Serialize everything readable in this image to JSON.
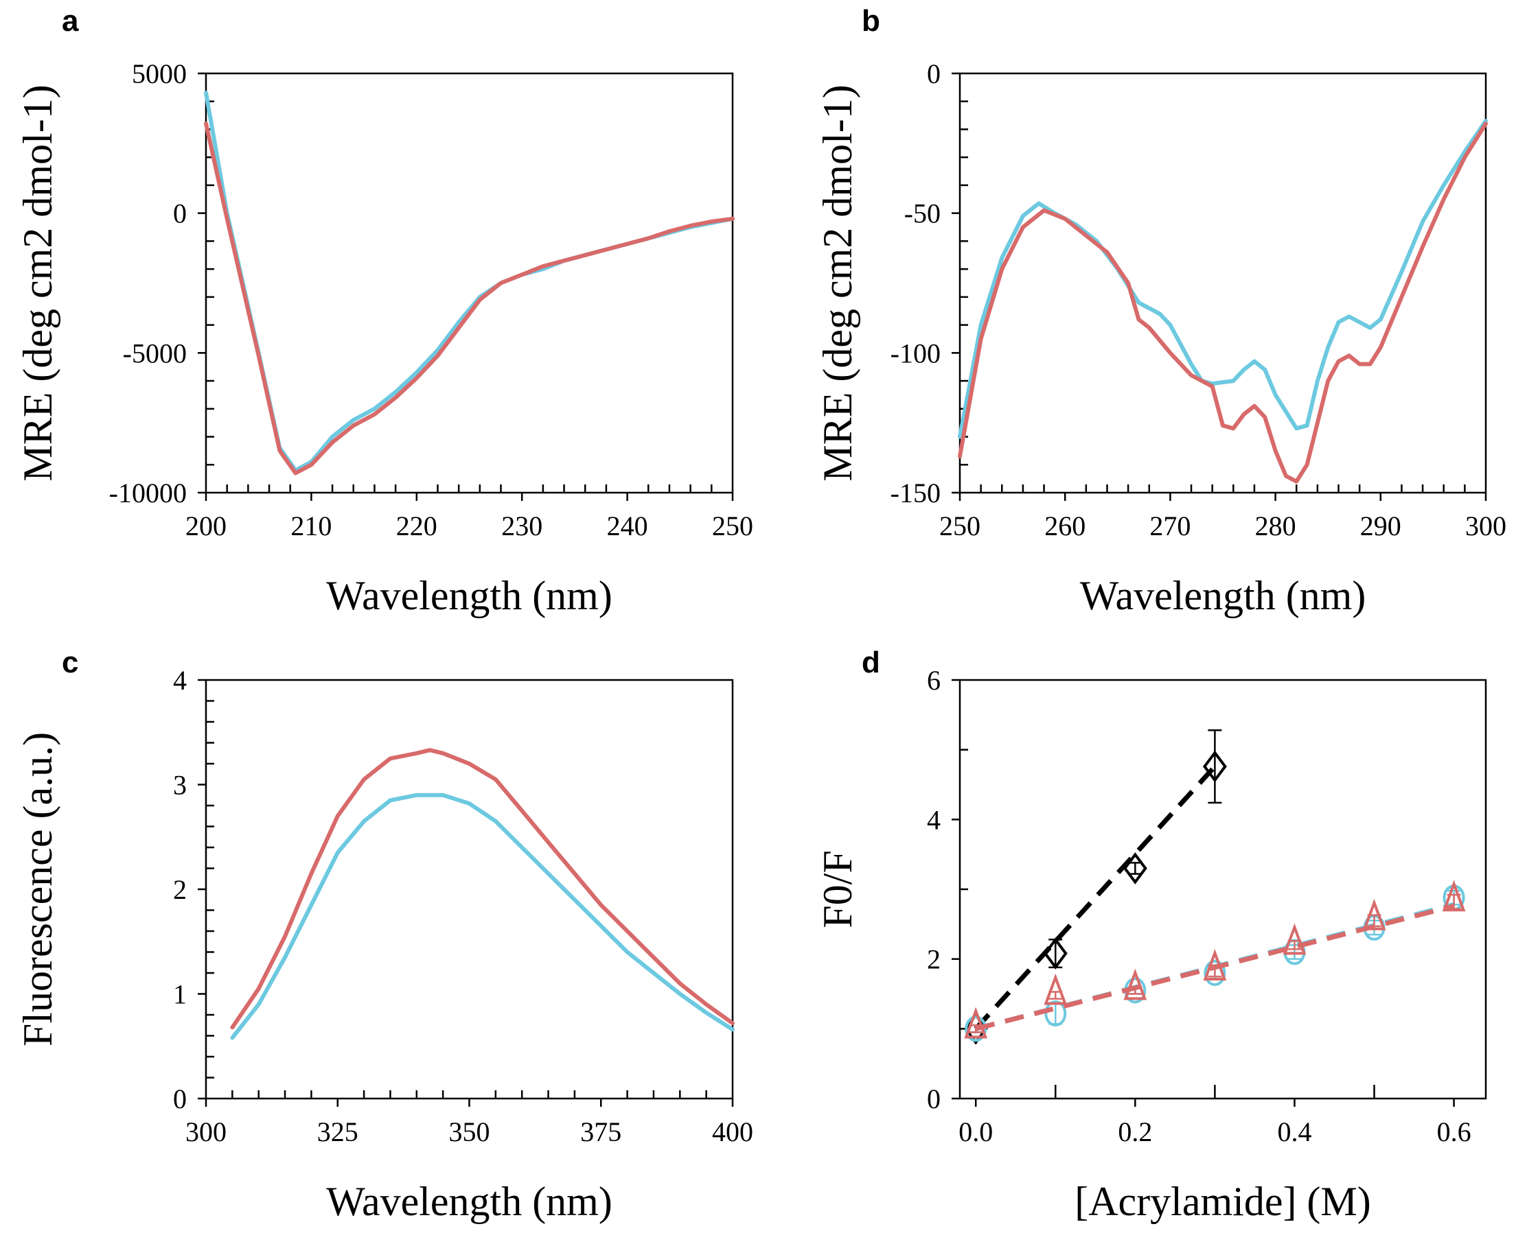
{
  "colors": {
    "cyan": "#6cc9e0",
    "red": "#d86a6a",
    "black": "#000000"
  },
  "chart_data": [
    {
      "panel": "a",
      "type": "line",
      "xlabel": "Wavelength (nm)",
      "ylabel": "MRE (deg cm2 dmol-1)",
      "ylabel_parts": [
        "MRE (deg cm",
        "2",
        " dmol",
        "-1",
        ")"
      ],
      "xlim": [
        200,
        250
      ],
      "ylim": [
        -10000,
        5000
      ],
      "xticks": [
        200,
        210,
        220,
        230,
        240,
        250
      ],
      "yticks": [
        -10000,
        -5000,
        0,
        5000
      ],
      "series": [
        {
          "name": "cyan",
          "color": "#6cc9e0",
          "x": [
            200,
            202,
            205,
            207,
            208.5,
            210,
            212,
            214,
            216,
            218,
            220,
            222,
            224,
            226,
            228,
            230,
            232,
            234,
            236,
            238,
            240,
            242,
            244,
            246,
            248,
            250
          ],
          "y": [
            4300,
            0,
            -5000,
            -8400,
            -9200,
            -8900,
            -8000,
            -7400,
            -7000,
            -6400,
            -5700,
            -4900,
            -3900,
            -3000,
            -2500,
            -2200,
            -2000,
            -1700,
            -1500,
            -1300,
            -1100,
            -900,
            -700,
            -500,
            -350,
            -200
          ]
        },
        {
          "name": "red",
          "color": "#d86a6a",
          "x": [
            200,
            202,
            205,
            207,
            208.5,
            210,
            212,
            214,
            216,
            218,
            220,
            222,
            224,
            226,
            228,
            230,
            232,
            234,
            236,
            238,
            240,
            242,
            244,
            246,
            248,
            250
          ],
          "y": [
            3200,
            -200,
            -5100,
            -8500,
            -9300,
            -9000,
            -8200,
            -7600,
            -7200,
            -6600,
            -5900,
            -5100,
            -4100,
            -3100,
            -2500,
            -2200,
            -1900,
            -1700,
            -1500,
            -1300,
            -1100,
            -900,
            -650,
            -450,
            -300,
            -200
          ]
        }
      ]
    },
    {
      "panel": "b",
      "type": "line",
      "xlabel": "Wavelength (nm)",
      "ylabel": "MRE (deg cm2 dmol-1)",
      "ylabel_parts": [
        "MRE (deg cm",
        "2",
        " dmol",
        "-1",
        ")"
      ],
      "xlim": [
        250,
        300
      ],
      "ylim": [
        -150,
        0
      ],
      "xticks": [
        250,
        260,
        270,
        280,
        290,
        300
      ],
      "yticks": [
        -150,
        -100,
        -50,
        0
      ],
      "series": [
        {
          "name": "cyan",
          "color": "#6cc9e0",
          "x": [
            250,
            252,
            254,
            256,
            257.5,
            259,
            261,
            263,
            265,
            267,
            269,
            270,
            272,
            273,
            274,
            276,
            277,
            278,
            279,
            280,
            282,
            283,
            284,
            285,
            286,
            287,
            288,
            289,
            290,
            292,
            294,
            296,
            298,
            300
          ],
          "y": [
            -130,
            -90,
            -66,
            -51,
            -46.5,
            -50,
            -54,
            -60,
            -70,
            -82,
            -86,
            -90,
            -104,
            -110,
            -111,
            -110,
            -106,
            -103,
            -106,
            -115,
            -127,
            -126,
            -110,
            -98,
            -89,
            -87,
            -89,
            -91,
            -88,
            -71,
            -53,
            -40,
            -28,
            -17
          ]
        },
        {
          "name": "red",
          "color": "#d86a6a",
          "x": [
            250,
            252,
            254,
            256,
            258,
            260,
            262,
            264,
            266,
            267,
            268,
            270,
            272,
            274,
            275,
            276,
            277,
            278,
            279,
            280,
            281,
            282,
            283,
            284,
            285,
            286,
            287,
            288,
            289,
            290,
            292,
            294,
            296,
            298,
            300
          ],
          "y": [
            -137,
            -95,
            -70,
            -55,
            -49,
            -52,
            -58,
            -64,
            -75,
            -88,
            -91,
            -100,
            -108,
            -112,
            -126,
            -127,
            -122,
            -119,
            -123,
            -135,
            -144,
            -146,
            -140,
            -125,
            -110,
            -103,
            -101,
            -104,
            -104,
            -98,
            -80,
            -62,
            -45,
            -30,
            -18
          ]
        }
      ]
    },
    {
      "panel": "c",
      "type": "line",
      "xlabel": "Wavelength (nm)",
      "ylabel": "Fluorescence (a.u.)",
      "xlim": [
        300,
        400
      ],
      "ylim": [
        0,
        4
      ],
      "xticks": [
        300,
        325,
        350,
        375,
        400
      ],
      "yticks": [
        0,
        1,
        2,
        3,
        4
      ],
      "series": [
        {
          "name": "red",
          "color": "#d86a6a",
          "x": [
            305,
            310,
            315,
            320,
            325,
            330,
            335,
            340,
            342.5,
            345,
            350,
            355,
            360,
            365,
            370,
            375,
            380,
            385,
            390,
            395,
            400
          ],
          "y": [
            0.68,
            1.05,
            1.55,
            2.15,
            2.7,
            3.05,
            3.25,
            3.3,
            3.33,
            3.3,
            3.2,
            3.05,
            2.75,
            2.45,
            2.15,
            1.85,
            1.6,
            1.35,
            1.1,
            0.9,
            0.72
          ]
        },
        {
          "name": "cyan",
          "color": "#6cc9e0",
          "x": [
            305,
            310,
            315,
            320,
            325,
            330,
            335,
            340,
            345,
            350,
            355,
            360,
            365,
            370,
            375,
            380,
            385,
            390,
            395,
            400
          ],
          "y": [
            0.58,
            0.9,
            1.35,
            1.85,
            2.35,
            2.65,
            2.85,
            2.9,
            2.9,
            2.82,
            2.65,
            2.4,
            2.15,
            1.9,
            1.65,
            1.4,
            1.2,
            1.0,
            0.82,
            0.66
          ]
        }
      ]
    },
    {
      "panel": "d",
      "type": "scatter",
      "xlabel": "[Acrylamide] (M)",
      "ylabel": "F0/F",
      "ylabel_parts": [
        "F",
        "0",
        "/F"
      ],
      "xlim": [
        -0.02,
        0.64
      ],
      "ylim": [
        0,
        6
      ],
      "xticks": [
        0.0,
        0.2,
        0.4,
        0.6
      ],
      "xtick_labels": [
        "0.0",
        "0.2",
        "0.4",
        "0.6"
      ],
      "yticks": [
        0,
        2,
        4,
        6
      ],
      "series": [
        {
          "name": "black-diamonds",
          "color": "#000000",
          "marker": "diamond",
          "x": [
            0,
            0.1,
            0.2,
            0.3
          ],
          "y": [
            1.0,
            2.08,
            3.3,
            4.76
          ],
          "err": [
            0.05,
            0.2,
            0.08,
            0.52
          ],
          "fit": {
            "x": [
              0,
              0.3
            ],
            "y": [
              1.0,
              4.76
            ]
          }
        },
        {
          "name": "cyan-circles",
          "color": "#6cc9e0",
          "marker": "circle",
          "x": [
            0,
            0.1,
            0.2,
            0.3,
            0.4,
            0.5,
            0.6
          ],
          "y": [
            1.0,
            1.22,
            1.55,
            1.8,
            2.1,
            2.45,
            2.88
          ],
          "err": [
            0.05,
            0.15,
            0.05,
            0.08,
            0.1,
            0.1,
            0.1
          ],
          "fit": {
            "x": [
              0,
              0.6
            ],
            "y": [
              1.0,
              2.78
            ]
          }
        },
        {
          "name": "red-triangles",
          "color": "#d86a6a",
          "marker": "triangle",
          "x": [
            0,
            0.1,
            0.2,
            0.3,
            0.4,
            0.5,
            0.6
          ],
          "y": [
            1.0,
            1.48,
            1.55,
            1.83,
            2.2,
            2.55,
            2.82
          ],
          "err": [
            0.05,
            0.05,
            0.05,
            0.08,
            0.06,
            0.08,
            0.1
          ],
          "fit": {
            "x": [
              0,
              0.6
            ],
            "y": [
              1.0,
              2.76
            ]
          }
        }
      ]
    }
  ],
  "panel_labels": [
    "a",
    "b",
    "c",
    "d"
  ]
}
